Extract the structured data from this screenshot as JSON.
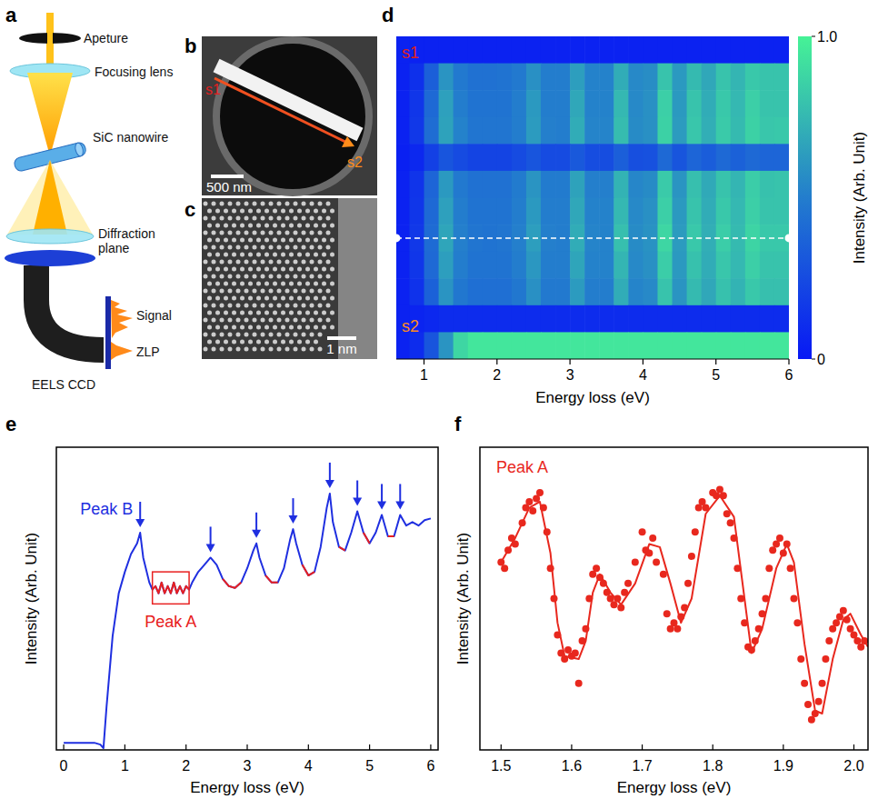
{
  "panel_labels": [
    "a",
    "b",
    "c",
    "d",
    "e",
    "f"
  ],
  "schematic": {
    "labels": [
      "Apeture",
      "Focusing lens",
      "SiC nanowire",
      "Diffraction plane",
      "Signal",
      "ZLP",
      "EELS CCD"
    ]
  },
  "images": {
    "b": {
      "start": "s1",
      "end": "s2",
      "scale_bar": "500 nm"
    },
    "c": {
      "scale_bar": "1 nm"
    }
  },
  "chart_data": [
    {
      "type": "heatmap",
      "x_label": "Energy loss (eV)",
      "colorbar_label": "Intensity (Arb. Unit)",
      "x": [
        0.7,
        0.9,
        1.1,
        1.3,
        1.5,
        1.7,
        1.9,
        2.1,
        2.3,
        2.5,
        2.7,
        2.9,
        3.1,
        3.3,
        3.5,
        3.7,
        3.9,
        4.1,
        4.3,
        4.5,
        4.7,
        4.9,
        5.1,
        5.3,
        5.5,
        5.7,
        5.9
      ],
      "cells": [
        [
          0.05,
          0.05,
          0.05,
          0.05,
          0.05,
          0.05,
          0.05,
          0.05,
          0.05,
          0.05,
          0.05,
          0.05,
          0.05,
          0.05,
          0.05,
          0.05,
          0.05,
          0.05,
          0.05,
          0.05,
          0.05,
          0.05,
          0.05,
          0.05,
          0.05,
          0.05,
          0.05
        ],
        [
          0.05,
          0.12,
          0.35,
          0.6,
          0.48,
          0.44,
          0.44,
          0.45,
          0.48,
          0.58,
          0.5,
          0.5,
          0.64,
          0.52,
          0.52,
          0.7,
          0.55,
          0.57,
          0.8,
          0.62,
          0.76,
          0.68,
          0.8,
          0.74,
          0.82,
          0.8,
          0.8
        ],
        [
          0.05,
          0.15,
          0.4,
          0.65,
          0.5,
          0.45,
          0.45,
          0.45,
          0.5,
          0.62,
          0.5,
          0.5,
          0.68,
          0.52,
          0.52,
          0.75,
          0.55,
          0.58,
          0.85,
          0.62,
          0.8,
          0.7,
          0.82,
          0.75,
          0.85,
          0.8,
          0.8
        ],
        [
          0.05,
          0.16,
          0.42,
          0.66,
          0.52,
          0.46,
          0.46,
          0.46,
          0.5,
          0.63,
          0.51,
          0.5,
          0.7,
          0.53,
          0.53,
          0.77,
          0.56,
          0.58,
          0.86,
          0.63,
          0.81,
          0.71,
          0.83,
          0.76,
          0.86,
          0.81,
          0.82
        ],
        [
          0.04,
          0.08,
          0.2,
          0.3,
          0.25,
          0.22,
          0.22,
          0.22,
          0.25,
          0.3,
          0.25,
          0.25,
          0.32,
          0.26,
          0.26,
          0.35,
          0.27,
          0.28,
          0.4,
          0.3,
          0.38,
          0.34,
          0.4,
          0.36,
          0.4,
          0.38,
          0.38
        ],
        [
          0.05,
          0.14,
          0.38,
          0.62,
          0.48,
          0.44,
          0.44,
          0.44,
          0.49,
          0.6,
          0.49,
          0.49,
          0.66,
          0.51,
          0.51,
          0.73,
          0.54,
          0.56,
          0.83,
          0.6,
          0.78,
          0.69,
          0.8,
          0.74,
          0.84,
          0.79,
          0.8
        ],
        [
          0.05,
          0.15,
          0.4,
          0.65,
          0.5,
          0.45,
          0.45,
          0.45,
          0.5,
          0.62,
          0.5,
          0.5,
          0.68,
          0.52,
          0.52,
          0.75,
          0.55,
          0.58,
          0.85,
          0.62,
          0.8,
          0.7,
          0.82,
          0.75,
          0.85,
          0.8,
          0.8
        ],
        [
          0.05,
          0.16,
          0.41,
          0.67,
          0.51,
          0.46,
          0.45,
          0.46,
          0.51,
          0.64,
          0.51,
          0.5,
          0.7,
          0.53,
          0.52,
          0.78,
          0.56,
          0.59,
          0.88,
          0.63,
          0.82,
          0.71,
          0.84,
          0.76,
          0.87,
          0.82,
          0.82
        ],
        [
          0.05,
          0.15,
          0.4,
          0.64,
          0.5,
          0.45,
          0.45,
          0.45,
          0.5,
          0.61,
          0.5,
          0.5,
          0.67,
          0.52,
          0.52,
          0.74,
          0.55,
          0.58,
          0.84,
          0.62,
          0.79,
          0.7,
          0.81,
          0.75,
          0.85,
          0.8,
          0.8
        ],
        [
          0.05,
          0.13,
          0.36,
          0.6,
          0.47,
          0.43,
          0.43,
          0.43,
          0.47,
          0.58,
          0.48,
          0.48,
          0.63,
          0.5,
          0.5,
          0.7,
          0.53,
          0.55,
          0.8,
          0.6,
          0.76,
          0.68,
          0.79,
          0.73,
          0.82,
          0.78,
          0.78
        ],
        [
          0.05,
          0.06,
          0.08,
          0.1,
          0.1,
          0.1,
          0.1,
          0.1,
          0.1,
          0.1,
          0.1,
          0.1,
          0.1,
          0.1,
          0.1,
          0.1,
          0.1,
          0.1,
          0.1,
          0.1,
          0.1,
          0.1,
          0.1,
          0.1,
          0.1,
          0.1,
          0.1
        ],
        [
          0.05,
          0.1,
          0.3,
          0.6,
          0.88,
          0.95,
          0.95,
          0.95,
          0.95,
          0.95,
          0.95,
          0.95,
          0.95,
          0.95,
          0.95,
          0.95,
          0.95,
          0.95,
          0.95,
          0.95,
          0.95,
          0.95,
          0.95,
          0.95,
          0.95,
          0.95,
          0.95
        ]
      ],
      "xlim": [
        0.62,
        6.0
      ],
      "xticks": [
        1,
        2,
        3,
        4,
        5,
        6
      ],
      "color_range": [
        0,
        1
      ],
      "color_ticks": [
        0,
        {
          "value": 1,
          "label": "1.0"
        }
      ],
      "tick_labels": "x",
      "highlight_row": 7,
      "annotations": [
        {
          "text": "s1",
          "color": "#e02020"
        },
        {
          "text": "s2",
          "color": "#ff8c1a"
        }
      ]
    },
    {
      "type": "line",
      "x_label": "Energy loss (eV)",
      "y_label": "Intensity (Arb. Unit)",
      "x": [
        0,
        0.1,
        0.2,
        0.3,
        0.4,
        0.5,
        0.6,
        0.65,
        0.7,
        0.8,
        0.9,
        1.0,
        1.1,
        1.2,
        1.25,
        1.3,
        1.4,
        1.45,
        1.5,
        1.55,
        1.6,
        1.65,
        1.7,
        1.75,
        1.8,
        1.85,
        1.9,
        1.95,
        2.0,
        2.05,
        2.1,
        2.2,
        2.3,
        2.4,
        2.5,
        2.6,
        2.7,
        2.8,
        2.9,
        3.0,
        3.1,
        3.15,
        3.2,
        3.3,
        3.4,
        3.5,
        3.6,
        3.7,
        3.75,
        3.8,
        3.9,
        4.0,
        4.1,
        4.2,
        4.3,
        4.35,
        4.4,
        4.5,
        4.6,
        4.7,
        4.8,
        4.9,
        5.0,
        5.1,
        5.2,
        5.3,
        5.4,
        5.5,
        5.6,
        5.7,
        5.8,
        5.9,
        6.0
      ],
      "series": [
        {
          "color": "#1f2fe0",
          "values": [
            0.02,
            0.02,
            0.02,
            0.02,
            0.02,
            0.02,
            0.015,
            0.005,
            0.12,
            0.32,
            0.44,
            0.5,
            0.55,
            0.58,
            0.61,
            0.54,
            0.47,
            0.45,
            0.46,
            0.44,
            0.47,
            0.44,
            0.46,
            0.44,
            0.47,
            0.44,
            0.46,
            0.44,
            0.46,
            0.45,
            0.47,
            0.5,
            0.52,
            0.54,
            0.52,
            0.48,
            0.46,
            0.455,
            0.47,
            0.51,
            0.56,
            0.58,
            0.54,
            0.49,
            0.47,
            0.47,
            0.51,
            0.59,
            0.62,
            0.58,
            0.52,
            0.49,
            0.5,
            0.57,
            0.68,
            0.72,
            0.64,
            0.57,
            0.56,
            0.61,
            0.67,
            0.61,
            0.58,
            0.61,
            0.66,
            0.6,
            0.6,
            0.66,
            0.63,
            0.64,
            0.63,
            0.645,
            0.65
          ]
        },
        {
          "color": "#e82020",
          "values": [
            null,
            null,
            null,
            null,
            null,
            null,
            null,
            null,
            null,
            null,
            null,
            null,
            null,
            null,
            null,
            null,
            null,
            0.45,
            0.46,
            0.44,
            0.47,
            0.44,
            0.46,
            0.44,
            0.47,
            0.44,
            0.46,
            0.44,
            0.46,
            0.45,
            null,
            null,
            null,
            null,
            null,
            0.48,
            0.46,
            0.455,
            0.47,
            null,
            null,
            null,
            null,
            0.49,
            0.47,
            0.47,
            null,
            null,
            null,
            null,
            0.52,
            0.49,
            0.5,
            null,
            null,
            null,
            null,
            0.57,
            0.56,
            null,
            null,
            0.61,
            0.58,
            null,
            null,
            0.6,
            0.6,
            null,
            null,
            null,
            null,
            null,
            null
          ]
        }
      ],
      "xlim": [
        -0.12,
        6.12
      ],
      "ylim": [
        0,
        0.85
      ],
      "xticks": [
        0,
        1,
        2,
        3,
        4,
        5,
        6
      ],
      "tick_labels": "x",
      "arrows": [
        1.25,
        2.4,
        3.15,
        3.75,
        4.35,
        4.8,
        5.2,
        5.5
      ],
      "box": {
        "x": [
          1.45,
          2.05
        ],
        "y": [
          0.41,
          0.5
        ]
      },
      "annotations": [
        {
          "text": "Peak B",
          "color": "#1f2fe0"
        },
        {
          "text": "Peak A",
          "color": "#e82020"
        }
      ]
    },
    {
      "type": "scatter",
      "x_label": "Energy loss (eV)",
      "y_label": "Intensity (Arb. Unit)",
      "series": [
        {
          "type": "scatter",
          "marker": "circle",
          "color": "#e8281e",
          "x": [
            1.5,
            1.505,
            1.51,
            1.515,
            1.52,
            1.53,
            1.535,
            1.54,
            1.545,
            1.55,
            1.555,
            1.56,
            1.565,
            1.57,
            1.575,
            1.58,
            1.585,
            1.59,
            1.595,
            1.6,
            1.605,
            1.61,
            1.615,
            1.62,
            1.625,
            1.63,
            1.635,
            1.64,
            1.645,
            1.65,
            1.655,
            1.66,
            1.665,
            1.67,
            1.675,
            1.68,
            1.69,
            1.7,
            1.705,
            1.71,
            1.715,
            1.72,
            1.73,
            1.735,
            1.74,
            1.745,
            1.75,
            1.755,
            1.76,
            1.765,
            1.77,
            1.775,
            1.78,
            1.785,
            1.79,
            1.8,
            1.805,
            1.81,
            1.815,
            1.82,
            1.825,
            1.83,
            1.835,
            1.84,
            1.845,
            1.85,
            1.855,
            1.86,
            1.865,
            1.87,
            1.875,
            1.88,
            1.885,
            1.89,
            1.895,
            1.9,
            1.905,
            1.91,
            1.915,
            1.92,
            1.925,
            1.93,
            1.935,
            1.94,
            1.945,
            1.95,
            1.955,
            1.96,
            1.965,
            1.97,
            1.975,
            1.98,
            1.985,
            1.99,
            1.995,
            2.0,
            2.005,
            2.01,
            2.015
          ],
          "values": [
            0.62,
            0.6,
            0.66,
            0.7,
            0.68,
            0.75,
            0.8,
            0.82,
            0.79,
            0.83,
            0.85,
            0.8,
            0.72,
            0.6,
            0.5,
            0.38,
            0.32,
            0.3,
            0.33,
            0.31,
            0.32,
            0.22,
            0.36,
            0.4,
            0.5,
            0.58,
            0.6,
            0.57,
            0.55,
            0.52,
            0.5,
            0.48,
            0.5,
            0.47,
            0.52,
            0.55,
            0.62,
            0.72,
            0.66,
            0.65,
            0.7,
            0.62,
            0.58,
            0.45,
            0.4,
            0.42,
            0.4,
            0.44,
            0.47,
            0.55,
            0.64,
            0.72,
            0.8,
            0.82,
            0.8,
            0.85,
            0.84,
            0.86,
            0.84,
            0.78,
            0.75,
            0.7,
            0.6,
            0.5,
            0.42,
            0.34,
            0.33,
            0.36,
            0.4,
            0.45,
            0.5,
            0.6,
            0.66,
            0.68,
            0.7,
            0.65,
            0.68,
            0.6,
            0.5,
            0.42,
            0.3,
            0.22,
            0.15,
            0.1,
            0.12,
            0.16,
            0.22,
            0.3,
            0.36,
            0.4,
            0.42,
            0.44,
            0.46,
            0.43,
            0.4,
            0.38,
            0.36,
            0.34,
            0.36
          ]
        },
        {
          "type": "line",
          "color": "#e8281e",
          "x": [
            1.5,
            1.52,
            1.54,
            1.555,
            1.57,
            1.58,
            1.59,
            1.61,
            1.62,
            1.63,
            1.64,
            1.655,
            1.67,
            1.69,
            1.71,
            1.725,
            1.74,
            1.755,
            1.77,
            1.79,
            1.81,
            1.83,
            1.845,
            1.855,
            1.87,
            1.89,
            1.905,
            1.915,
            1.93,
            1.945,
            1.955,
            1.97,
            1.985,
            1.995,
            2.01,
            2.02
          ],
          "values": [
            0.62,
            0.7,
            0.8,
            0.82,
            0.65,
            0.42,
            0.31,
            0.3,
            0.36,
            0.52,
            0.58,
            0.52,
            0.48,
            0.55,
            0.68,
            0.67,
            0.55,
            0.42,
            0.5,
            0.78,
            0.84,
            0.77,
            0.5,
            0.32,
            0.4,
            0.6,
            0.68,
            0.62,
            0.35,
            0.13,
            0.12,
            0.3,
            0.43,
            0.45,
            0.38,
            0.34
          ]
        }
      ],
      "xlim": [
        1.47,
        2.02
      ],
      "ylim": [
        0,
        1
      ],
      "xticks": [
        1.5,
        1.6,
        1.7,
        1.8,
        1.9,
        {
          "value": 2,
          "label": "2.0"
        }
      ],
      "tick_labels": "x",
      "annotations": [
        {
          "text": "Peak A",
          "color": "#e8281e"
        }
      ]
    }
  ]
}
